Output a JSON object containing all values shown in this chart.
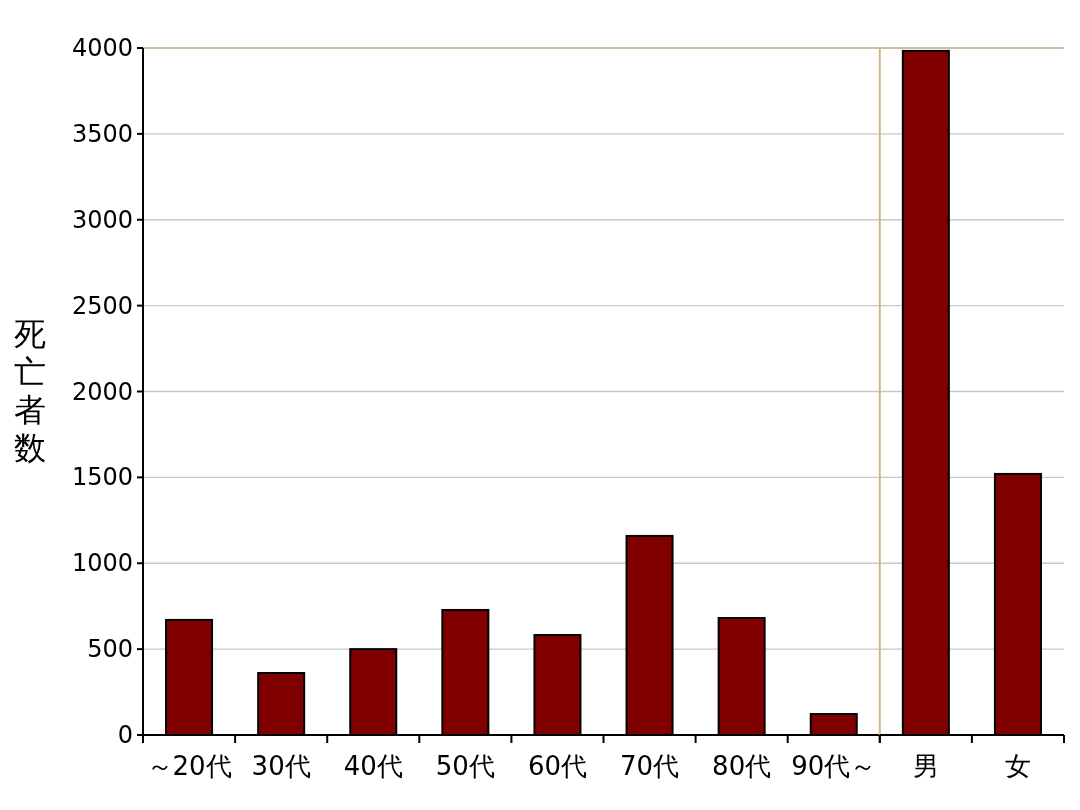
{
  "chart_data": [
    {
      "type": "bar",
      "ylabel": "死亡者数",
      "categories": [
        "～20代",
        "30代",
        "40代",
        "50代",
        "60代",
        "70代",
        "80代",
        "90代～"
      ],
      "values": [
        670,
        361,
        500,
        728,
        582,
        1159,
        681,
        122
      ],
      "color": "#800000",
      "ylim": [
        0,
        4000
      ],
      "yticks": [
        0,
        500,
        1000,
        1500,
        2000,
        2500,
        3000,
        3500,
        4000
      ],
      "grid": "y"
    },
    {
      "type": "bar",
      "categories": [
        "男",
        "女"
      ],
      "values": [
        3983,
        1520
      ],
      "color": "#800000",
      "ylim": [
        0,
        4000
      ],
      "yticks": [
        0,
        500,
        1000,
        1500,
        2000,
        2500,
        3000,
        3500,
        4000
      ],
      "grid": "y",
      "tick_labels": "x"
    }
  ]
}
